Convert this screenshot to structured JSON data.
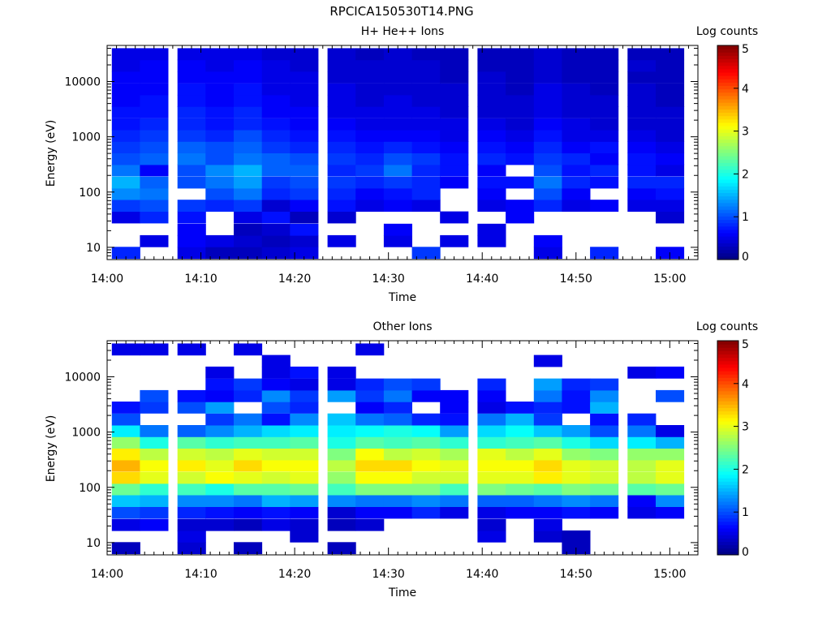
{
  "title": "RPCICA150530T14.PNG",
  "chart_data": [
    {
      "type": "heatmap",
      "title": "H+ He++ Ions",
      "xlabel": "Time",
      "ylabel": "Energy (eV)",
      "colorbar_label": "Log counts",
      "colorbar_ticks": [
        "0",
        "1",
        "2",
        "3",
        "4",
        "5"
      ],
      "clim": [
        0,
        5
      ],
      "x_ticks": [
        "14:00",
        "14:10",
        "14:20",
        "14:30",
        "14:40",
        "14:50",
        "15:00"
      ],
      "x_range_minutes": [
        0,
        63
      ],
      "y_ticks": [
        "10",
        "100",
        "1000",
        "10000"
      ],
      "y_scale": "log",
      "ylim": [
        6,
        45000
      ],
      "colormap": "jet",
      "x_bins": [
        "14:02",
        "14:05",
        "14:09",
        "14:12",
        "14:15",
        "14:18",
        "14:21",
        "14:25",
        "14:28",
        "14:31",
        "14:34",
        "14:37",
        "14:41",
        "14:44",
        "14:47",
        "14:50",
        "14:53",
        "14:57",
        "15:00"
      ],
      "energy_bins_eV": [
        8,
        13,
        21,
        35,
        57,
        93,
        150,
        250,
        400,
        650,
        1050,
        1700,
        2800,
        4500,
        7300,
        12000,
        19500,
        31500
      ],
      "z": [
        [
          0.8,
          0,
          0.5,
          0.3,
          0.3,
          0.4,
          0.5,
          0,
          0,
          0,
          0.9,
          0,
          0,
          0,
          0.5,
          0,
          0.8,
          0,
          0.6
        ],
        [
          0,
          0.5,
          0.6,
          0.5,
          0.4,
          0.3,
          0.4,
          0.5,
          0,
          0.5,
          0,
          0.5,
          0.5,
          0,
          0.6,
          0,
          0,
          0,
          0
        ],
        [
          0,
          0,
          0.6,
          0,
          0.3,
          0.4,
          0.7,
          0,
          0,
          0.6,
          0,
          0,
          0.5,
          0,
          0,
          0,
          0,
          0,
          0
        ],
        [
          0.5,
          0.8,
          0.7,
          0,
          0.5,
          0.7,
          0.3,
          0.4,
          0,
          0,
          0,
          0.5,
          0,
          0.6,
          0,
          0,
          0,
          0,
          0.4
        ],
        [
          0.9,
          1.0,
          0.9,
          0.8,
          0.9,
          0.4,
          0.6,
          0.7,
          0.5,
          0.6,
          0.5,
          0,
          0.5,
          0.6,
          0.8,
          0.5,
          0.6,
          0.5,
          0.5
        ],
        [
          1.3,
          1.2,
          0,
          1.0,
          1.2,
          0.8,
          0.9,
          0.8,
          0.6,
          0.7,
          0.8,
          0,
          0.6,
          0,
          1.0,
          0.6,
          0,
          0.6,
          0.7
        ],
        [
          1.5,
          1.1,
          1.0,
          1.2,
          1.4,
          0.9,
          1.0,
          0.9,
          0.8,
          0.9,
          0.8,
          0.6,
          0.7,
          0.7,
          1.2,
          0.8,
          0.7,
          0.8,
          0.8
        ],
        [
          1.2,
          0.6,
          1.0,
          1.3,
          1.5,
          1.1,
          1.1,
          0.8,
          0.9,
          1.2,
          0.8,
          0.7,
          0.6,
          0,
          1.0,
          0.7,
          0.8,
          0.7,
          0.5
        ],
        [
          1.0,
          1.1,
          1.2,
          1.0,
          1.2,
          1.1,
          1.0,
          0.9,
          0.8,
          1.0,
          0.9,
          0.7,
          0.8,
          0.7,
          0.9,
          0.8,
          0.6,
          0.7,
          0.6
        ],
        [
          0.9,
          1.0,
          1.1,
          1.0,
          1.1,
          0.9,
          0.8,
          0.8,
          0.7,
          0.8,
          0.7,
          0.6,
          0.7,
          0.6,
          0.8,
          0.6,
          0.7,
          0.6,
          0.5
        ],
        [
          0.8,
          0.9,
          0.9,
          0.8,
          1.0,
          0.8,
          0.7,
          0.7,
          0.6,
          0.6,
          0.6,
          0.5,
          0.6,
          0.5,
          0.7,
          0.5,
          0.5,
          0.5,
          0.4
        ],
        [
          0.7,
          0.8,
          0.8,
          0.7,
          0.8,
          0.7,
          0.6,
          0.6,
          0.5,
          0.5,
          0.5,
          0.5,
          0.5,
          0.4,
          0.6,
          0.5,
          0.4,
          0.4,
          0.4
        ],
        [
          0.7,
          0.7,
          0.8,
          0.7,
          0.8,
          0.6,
          0.6,
          0.5,
          0.5,
          0.5,
          0.5,
          0.4,
          0.4,
          0.4,
          0.5,
          0.4,
          0.4,
          0.4,
          0.4
        ],
        [
          0.6,
          0.7,
          0.7,
          0.6,
          0.7,
          0.6,
          0.5,
          0.5,
          0.4,
          0.5,
          0.4,
          0.4,
          0.4,
          0.4,
          0.5,
          0.4,
          0.4,
          0.4,
          0.3
        ],
        [
          0.6,
          0.6,
          0.7,
          0.6,
          0.7,
          0.5,
          0.5,
          0.5,
          0.4,
          0.4,
          0.4,
          0.4,
          0.4,
          0.3,
          0.5,
          0.4,
          0.3,
          0.4,
          0.3
        ],
        [
          0.6,
          0.6,
          0.6,
          0.6,
          0.6,
          0.5,
          0.5,
          0.4,
          0.4,
          0.4,
          0.4,
          0.3,
          0.4,
          0.3,
          0.4,
          0.3,
          0.3,
          0.3,
          0.3
        ],
        [
          0.5,
          0.6,
          0.6,
          0.5,
          0.6,
          0.5,
          0.4,
          0.4,
          0.4,
          0.4,
          0.4,
          0.3,
          0.3,
          0.3,
          0.4,
          0.3,
          0.3,
          0.4,
          0.3
        ],
        [
          0.5,
          0.5,
          0.5,
          0.5,
          0.5,
          0.4,
          0.4,
          0.4,
          0.3,
          0.4,
          0.3,
          0.3,
          0.3,
          0.3,
          0.4,
          0.3,
          0.3,
          0.3,
          0.3
        ]
      ]
    },
    {
      "type": "heatmap",
      "title": "Other Ions",
      "xlabel": "Time",
      "ylabel": "Energy (eV)",
      "colorbar_label": "Log counts",
      "colorbar_ticks": [
        "0",
        "1",
        "2",
        "3",
        "4",
        "5"
      ],
      "clim": [
        0,
        5
      ],
      "x_ticks": [
        "14:00",
        "14:10",
        "14:20",
        "14:30",
        "14:40",
        "14:50",
        "15:00"
      ],
      "x_range_minutes": [
        0,
        63
      ],
      "y_ticks": [
        "10",
        "100",
        "1000",
        "10000"
      ],
      "y_scale": "log",
      "ylim": [
        6,
        45000
      ],
      "colormap": "jet",
      "x_bins": [
        "14:02",
        "14:05",
        "14:09",
        "14:12",
        "14:15",
        "14:18",
        "14:21",
        "14:25",
        "14:28",
        "14:31",
        "14:34",
        "14:37",
        "14:41",
        "14:44",
        "14:47",
        "14:50",
        "14:53",
        "14:57",
        "15:00"
      ],
      "energy_bins_eV": [
        8,
        13,
        21,
        35,
        57,
        93,
        150,
        250,
        400,
        650,
        1050,
        1700,
        2800,
        4500,
        7300,
        12000,
        19500,
        31500
      ],
      "z": [
        [
          0.3,
          0,
          0.4,
          0,
          0.3,
          0,
          0,
          0.3,
          0,
          0,
          0,
          0,
          0,
          0,
          0,
          0.3,
          0,
          0,
          0
        ],
        [
          0,
          0,
          0.5,
          0,
          0,
          0,
          0.4,
          0,
          0,
          0,
          0,
          0,
          0.5,
          0,
          0.4,
          0.3,
          0,
          0,
          0
        ],
        [
          0.5,
          0.6,
          0.4,
          0.4,
          0.3,
          0.5,
          0.4,
          0.3,
          0.4,
          0,
          0,
          0,
          0.4,
          0,
          0.5,
          0,
          0,
          0,
          0
        ],
        [
          1.0,
          0.9,
          0.8,
          0.7,
          0.6,
          0.7,
          0.6,
          0.4,
          0.6,
          0.6,
          0.8,
          0.5,
          0.5,
          0.6,
          0.6,
          0.7,
          0.6,
          0.5,
          0.6
        ],
        [
          1.6,
          1.5,
          1.3,
          1.3,
          1.2,
          1.5,
          1.4,
          1.3,
          1.2,
          1.2,
          1.3,
          1.2,
          1.1,
          1.1,
          1.2,
          1.3,
          1.2,
          0.6,
          1.3
        ],
        [
          2.4,
          2.1,
          2.2,
          2.0,
          2.3,
          2.3,
          2.4,
          2.2,
          2.5,
          2.5,
          2.5,
          2.2,
          2.5,
          2.4,
          2.3,
          2.5,
          2.4,
          2.3,
          2.4
        ],
        [
          3.3,
          3.0,
          2.9,
          3.1,
          3.0,
          2.9,
          3.0,
          2.6,
          3.1,
          3.1,
          2.9,
          2.9,
          3.0,
          3.0,
          3.2,
          3.0,
          2.9,
          2.8,
          3.0
        ],
        [
          3.5,
          3.1,
          3.2,
          3.0,
          3.3,
          3.1,
          3.1,
          2.8,
          3.3,
          3.3,
          3.1,
          3.0,
          3.1,
          3.1,
          3.3,
          3.0,
          2.9,
          2.8,
          3.0
        ],
        [
          3.2,
          2.8,
          2.9,
          2.8,
          3.0,
          2.9,
          2.9,
          2.5,
          3.1,
          2.8,
          2.9,
          2.7,
          3.0,
          2.8,
          3.0,
          2.6,
          2.5,
          2.6,
          2.6
        ],
        [
          2.6,
          2.0,
          2.3,
          2.1,
          2.2,
          2.2,
          2.3,
          2.0,
          2.3,
          2.2,
          2.3,
          2.1,
          2.1,
          2.2,
          2.3,
          2.0,
          1.7,
          1.8,
          1.5
        ],
        [
          1.8,
          1.2,
          1.1,
          1.3,
          1.5,
          1.7,
          1.8,
          1.8,
          1.9,
          2.0,
          1.9,
          1.4,
          1.7,
          1.9,
          1.6,
          1.4,
          1.0,
          1.2,
          0.5
        ],
        [
          1.0,
          0,
          0,
          0.9,
          1.2,
          0.7,
          1.3,
          1.6,
          1.2,
          1.1,
          0.8,
          0.7,
          1.2,
          1.5,
          0.9,
          0,
          0.7,
          0.8,
          0
        ],
        [
          0.7,
          0.9,
          1.0,
          1.4,
          0,
          1.0,
          0.8,
          0,
          0.6,
          0.8,
          0,
          0.6,
          0.5,
          0.7,
          0.8,
          0.7,
          1.5,
          0,
          0
        ],
        [
          0,
          1.0,
          0.7,
          0.6,
          0.8,
          1.3,
          0.9,
          1.4,
          0.9,
          1.2,
          0.6,
          0.6,
          0.6,
          0,
          1.2,
          0.7,
          1.3,
          0,
          1.0
        ],
        [
          0,
          0,
          0,
          0.7,
          0.9,
          0.6,
          0.5,
          0.5,
          0.8,
          1.0,
          0.9,
          0,
          0.8,
          0,
          1.4,
          0.8,
          0.9,
          0,
          0
        ],
        [
          0,
          0,
          0,
          0.5,
          0,
          0.5,
          0.7,
          0.5,
          0,
          0,
          0,
          0,
          0,
          0,
          0,
          0,
          0,
          0.5,
          0.6
        ],
        [
          0,
          0,
          0,
          0,
          0,
          0.5,
          0,
          0,
          0,
          0,
          0,
          0,
          0,
          0,
          0.5,
          0,
          0,
          0,
          0
        ],
        [
          0.5,
          0.5,
          0.5,
          0,
          0.5,
          0,
          0,
          0,
          0.5,
          0,
          0,
          0,
          0,
          0,
          0,
          0,
          0,
          0,
          0
        ]
      ]
    }
  ]
}
